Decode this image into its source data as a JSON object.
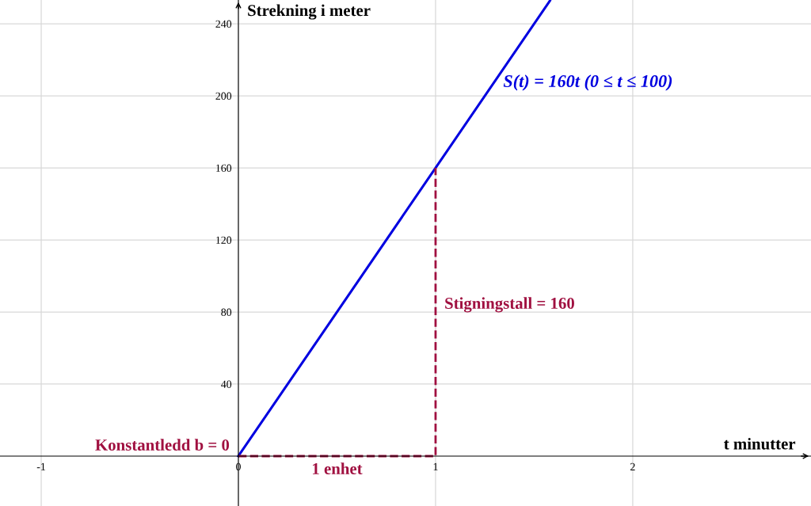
{
  "chart_data": {
    "type": "line",
    "xlabel": "t minutter",
    "ylabel": "Strekning i meter",
    "xlim": [
      -1.209,
      2.904
    ],
    "ylim": [
      -27.7,
      253.2
    ],
    "xticks": [
      -1,
      0,
      1,
      2
    ],
    "yticks": [
      40,
      80,
      120,
      160,
      200,
      240
    ],
    "grid": true,
    "line_style": "solid",
    "marker": "none",
    "series": [
      {
        "name": "S(t) = 160t (0 ≤ t ≤ 100)",
        "color": "#0000e0",
        "x": [
          0,
          1.58
        ],
        "values": [
          0,
          252.8
        ]
      },
      {
        "type": "line",
        "line_style": "dashed",
        "color": "#a01040",
        "x": [
          0,
          1,
          1
        ],
        "values": [
          0,
          0,
          160
        ]
      }
    ],
    "annotations": [
      {
        "text": "Stigningstall = 160",
        "x": 1,
        "y": 84
      },
      {
        "text": "1 enhet",
        "x": 0.5,
        "y": 0
      },
      {
        "text": "Konstantledd b = 0",
        "x": 0,
        "y": 0
      }
    ]
  }
}
